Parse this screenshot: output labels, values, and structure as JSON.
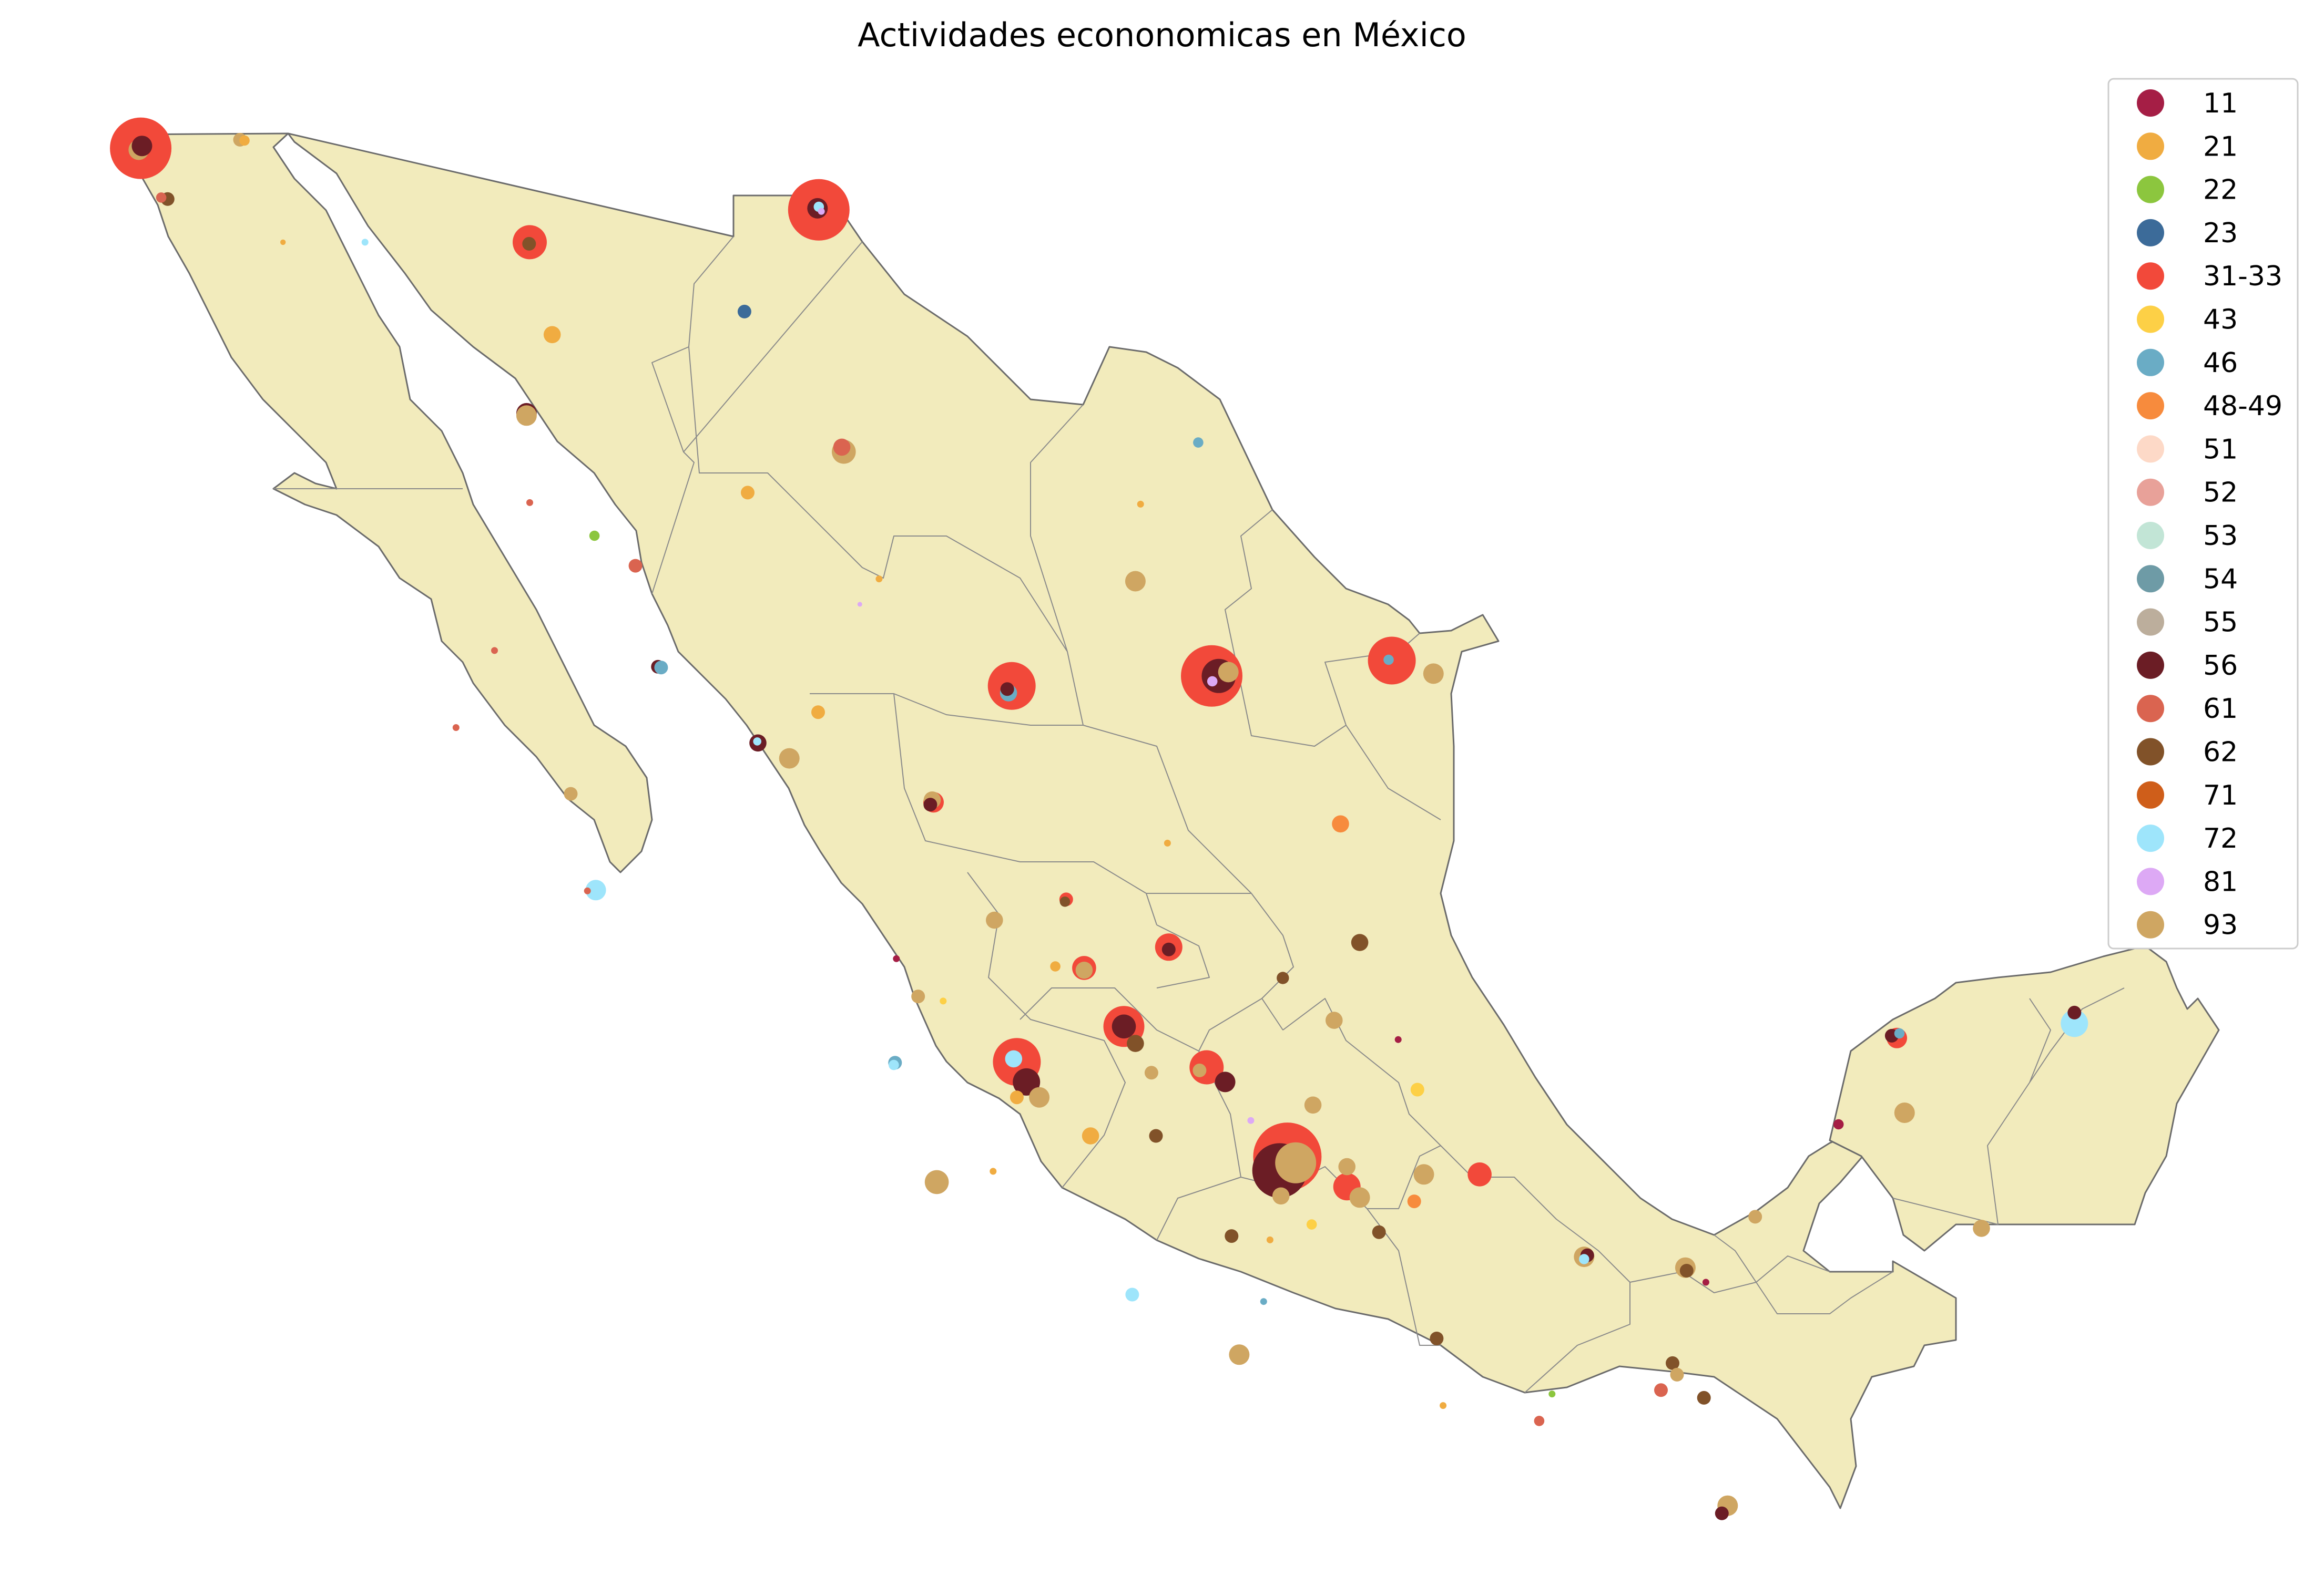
{
  "title": "Actividades econonomicas en México",
  "legend": {
    "entries": [
      {
        "code": "11",
        "label": "11",
        "color": "#a51e45"
      },
      {
        "code": "21",
        "label": "21",
        "color": "#f0ac41"
      },
      {
        "code": "22",
        "label": "22",
        "color": "#8cc63e"
      },
      {
        "code": "23",
        "label": "23",
        "color": "#3c6b99"
      },
      {
        "code": "31-33",
        "label": "31-33",
        "color": "#f2493a"
      },
      {
        "code": "43",
        "label": "43",
        "color": "#fdd046"
      },
      {
        "code": "46",
        "label": "46",
        "color": "#6aacc5"
      },
      {
        "code": "48-49",
        "label": "48-49",
        "color": "#f78b3d"
      },
      {
        "code": "51",
        "label": "51",
        "color": "#fdd9c7"
      },
      {
        "code": "52",
        "label": "52",
        "color": "#e8a199"
      },
      {
        "code": "53",
        "label": "53",
        "color": "#c2e5d6"
      },
      {
        "code": "54",
        "label": "54",
        "color": "#6e9ba6"
      },
      {
        "code": "55",
        "label": "55",
        "color": "#bcae9c"
      },
      {
        "code": "56",
        "label": "56",
        "color": "#6b1d25"
      },
      {
        "code": "61",
        "label": "61",
        "color": "#da6450"
      },
      {
        "code": "62",
        "label": "62",
        "color": "#815229"
      },
      {
        "code": "71",
        "label": "71",
        "color": "#cf5e1a"
      },
      {
        "code": "72",
        "label": "72",
        "color": "#9ee5fb"
      },
      {
        "code": "81",
        "label": "81",
        "color": "#dda9f5"
      },
      {
        "code": "93",
        "label": "93",
        "color": "#cfa662"
      }
    ]
  },
  "map": {
    "land_color": "#f2ebbc",
    "border_color": "#8a8a8a",
    "points": [
      {
        "lon": -117.02,
        "lat": 32.52,
        "code": "31-33",
        "size": 9
      },
      {
        "lon": -117.05,
        "lat": 32.5,
        "code": "93",
        "size": 3
      },
      {
        "lon": -117.0,
        "lat": 32.55,
        "code": "56",
        "size": 3
      },
      {
        "lon": -115.47,
        "lat": 32.63,
        "code": "93",
        "size": 2
      },
      {
        "lon": -115.4,
        "lat": 32.62,
        "code": "21",
        "size": 1.5
      },
      {
        "lon": -116.6,
        "lat": 31.86,
        "code": "62",
        "size": 2
      },
      {
        "lon": -116.7,
        "lat": 31.88,
        "code": "61",
        "size": 1.5
      },
      {
        "lon": -114.8,
        "lat": 31.3,
        "code": "21",
        "size": 0.8
      },
      {
        "lon": -113.52,
        "lat": 31.3,
        "code": "72",
        "size": 1
      },
      {
        "lon": -110.95,
        "lat": 31.3,
        "code": "31-33",
        "size": 5
      },
      {
        "lon": -110.96,
        "lat": 31.28,
        "code": "62",
        "size": 2
      },
      {
        "lon": -106.44,
        "lat": 31.72,
        "code": "31-33",
        "size": 9
      },
      {
        "lon": -106.46,
        "lat": 31.74,
        "code": "56",
        "size": 3
      },
      {
        "lon": -106.44,
        "lat": 31.76,
        "code": "72",
        "size": 1.5
      },
      {
        "lon": -106.4,
        "lat": 31.7,
        "code": "81",
        "size": 1
      },
      {
        "lon": -110.6,
        "lat": 30.1,
        "code": "21",
        "size": 2.5
      },
      {
        "lon": -107.6,
        "lat": 30.4,
        "code": "23",
        "size": 2
      },
      {
        "lon": -111.0,
        "lat": 29.08,
        "code": "56",
        "size": 3
      },
      {
        "lon": -111.0,
        "lat": 29.05,
        "code": "93",
        "size": 3
      },
      {
        "lon": -106.08,
        "lat": 28.64,
        "code": "61",
        "size": 2.5
      },
      {
        "lon": -106.05,
        "lat": 28.58,
        "code": "93",
        "size": 3.5
      },
      {
        "lon": -100.52,
        "lat": 28.7,
        "code": "46",
        "size": 1.5
      },
      {
        "lon": -107.55,
        "lat": 28.05,
        "code": "21",
        "size": 2
      },
      {
        "lon": -110.95,
        "lat": 27.92,
        "code": "61",
        "size": 1
      },
      {
        "lon": -101.42,
        "lat": 27.9,
        "code": "21",
        "size": 1
      },
      {
        "lon": -109.94,
        "lat": 27.49,
        "code": "22",
        "size": 1.5
      },
      {
        "lon": -109.3,
        "lat": 27.1,
        "code": "61",
        "size": 2
      },
      {
        "lon": -101.5,
        "lat": 26.9,
        "code": "93",
        "size": 3
      },
      {
        "lon": -103.43,
        "lat": 25.54,
        "code": "31-33",
        "size": 7
      },
      {
        "lon": -103.48,
        "lat": 25.45,
        "code": "46",
        "size": 2.5
      },
      {
        "lon": -103.5,
        "lat": 25.5,
        "code": "56",
        "size": 2
      },
      {
        "lon": -100.31,
        "lat": 25.67,
        "code": "31-33",
        "size": 9
      },
      {
        "lon": -100.2,
        "lat": 25.67,
        "code": "56",
        "size": 5
      },
      {
        "lon": -100.05,
        "lat": 25.72,
        "code": "93",
        "size": 3
      },
      {
        "lon": -100.3,
        "lat": 25.6,
        "code": "81",
        "size": 1.5
      },
      {
        "lon": -97.5,
        "lat": 25.87,
        "code": "31-33",
        "size": 7
      },
      {
        "lon": -97.55,
        "lat": 25.88,
        "code": "46",
        "size": 1.5
      },
      {
        "lon": -96.85,
        "lat": 25.7,
        "code": "93",
        "size": 3
      },
      {
        "lon": -105.8,
        "lat": 26.6,
        "code": "81",
        "size": 0.7
      },
      {
        "lon": -105.5,
        "lat": 26.93,
        "code": "21",
        "size": 1
      },
      {
        "lon": -108.95,
        "lat": 25.79,
        "code": "56",
        "size": 2
      },
      {
        "lon": -108.9,
        "lat": 25.78,
        "code": "46",
        "size": 2
      },
      {
        "lon": -104.65,
        "lat": 24.03,
        "code": "31-33",
        "size": 3
      },
      {
        "lon": -104.7,
        "lat": 24.0,
        "code": "56",
        "size": 2
      },
      {
        "lon": -104.67,
        "lat": 24.06,
        "code": "93",
        "size": 2.5
      },
      {
        "lon": -106.45,
        "lat": 25.2,
        "code": "21",
        "size": 2
      },
      {
        "lon": -107.39,
        "lat": 24.8,
        "code": "56",
        "size": 2.5
      },
      {
        "lon": -107.4,
        "lat": 24.82,
        "code": "72",
        "size": 1.2
      },
      {
        "lon": -106.9,
        "lat": 24.6,
        "code": "93",
        "size": 3
      },
      {
        "lon": -98.3,
        "lat": 23.75,
        "code": "48-49",
        "size": 2.5
      },
      {
        "lon": -101.0,
        "lat": 23.5,
        "code": "21",
        "size": 1
      },
      {
        "lon": -102.58,
        "lat": 22.77,
        "code": "31-33",
        "size": 2
      },
      {
        "lon": -102.6,
        "lat": 22.74,
        "code": "62",
        "size": 1.5
      },
      {
        "lon": -103.7,
        "lat": 22.5,
        "code": "93",
        "size": 2.5
      },
      {
        "lon": -102.3,
        "lat": 21.88,
        "code": "31-33",
        "size": 3.5
      },
      {
        "lon": -102.3,
        "lat": 21.85,
        "code": "93",
        "size": 2.5
      },
      {
        "lon": -100.98,
        "lat": 22.15,
        "code": "31-33",
        "size": 4
      },
      {
        "lon": -100.98,
        "lat": 22.12,
        "code": "56",
        "size": 2
      },
      {
        "lon": -102.75,
        "lat": 21.9,
        "code": "21",
        "size": 1.5
      },
      {
        "lon": -98.0,
        "lat": 22.21,
        "code": "62",
        "size": 2.5
      },
      {
        "lon": -99.2,
        "lat": 21.75,
        "code": "62",
        "size": 1.8
      },
      {
        "lon": -98.4,
        "lat": 21.2,
        "code": "93",
        "size": 2.5
      },
      {
        "lon": -97.4,
        "lat": 20.95,
        "code": "11",
        "size": 1
      },
      {
        "lon": -105.23,
        "lat": 22.0,
        "code": "11",
        "size": 1
      },
      {
        "lon": -104.89,
        "lat": 21.51,
        "code": "93",
        "size": 2
      },
      {
        "lon": -104.5,
        "lat": 21.45,
        "code": "43",
        "size": 1
      },
      {
        "lon": -103.35,
        "lat": 20.66,
        "code": "31-33",
        "size": 7
      },
      {
        "lon": -103.2,
        "lat": 20.4,
        "code": "56",
        "size": 4
      },
      {
        "lon": -103.4,
        "lat": 20.7,
        "code": "72",
        "size": 2.5
      },
      {
        "lon": -103.0,
        "lat": 20.2,
        "code": "93",
        "size": 3
      },
      {
        "lon": -103.35,
        "lat": 20.2,
        "code": "21",
        "size": 2
      },
      {
        "lon": -105.25,
        "lat": 20.65,
        "code": "46",
        "size": 2
      },
      {
        "lon": -105.27,
        "lat": 20.62,
        "code": "72",
        "size": 1.5
      },
      {
        "lon": -101.68,
        "lat": 21.12,
        "code": "31-33",
        "size": 6
      },
      {
        "lon": -101.68,
        "lat": 21.12,
        "code": "56",
        "size": 3.5
      },
      {
        "lon": -101.5,
        "lat": 20.9,
        "code": "62",
        "size": 2.5
      },
      {
        "lon": -101.25,
        "lat": 20.52,
        "code": "93",
        "size": 2
      },
      {
        "lon": -100.39,
        "lat": 20.59,
        "code": "31-33",
        "size": 5
      },
      {
        "lon": -100.1,
        "lat": 20.4,
        "code": "56",
        "size": 3
      },
      {
        "lon": -100.5,
        "lat": 20.55,
        "code": "93",
        "size": 2
      },
      {
        "lon": -101.18,
        "lat": 19.7,
        "code": "62",
        "size": 2
      },
      {
        "lon": -102.2,
        "lat": 19.7,
        "code": "21",
        "size": 2.5
      },
      {
        "lon": -104.6,
        "lat": 19.1,
        "code": "93",
        "size": 3.5
      },
      {
        "lon": -103.72,
        "lat": 19.24,
        "code": "21",
        "size": 1
      },
      {
        "lon": -99.13,
        "lat": 19.43,
        "code": "31-33",
        "size": 10
      },
      {
        "lon": -99.25,
        "lat": 19.25,
        "code": "56",
        "size": 8
      },
      {
        "lon": -99.0,
        "lat": 19.35,
        "code": "93",
        "size": 6
      },
      {
        "lon": -98.2,
        "lat": 19.04,
        "code": "31-33",
        "size": 4
      },
      {
        "lon": -98.0,
        "lat": 18.9,
        "code": "93",
        "size": 3
      },
      {
        "lon": -98.2,
        "lat": 19.3,
        "code": "93",
        "size": 2.5
      },
      {
        "lon": -97.0,
        "lat": 19.2,
        "code": "93",
        "size": 3
      },
      {
        "lon": -96.13,
        "lat": 19.2,
        "code": "31-33",
        "size": 3.5
      },
      {
        "lon": -97.1,
        "lat": 20.3,
        "code": "43",
        "size": 2
      },
      {
        "lon": -98.73,
        "lat": 20.1,
        "code": "93",
        "size": 2.5
      },
      {
        "lon": -99.7,
        "lat": 19.9,
        "code": "81",
        "size": 1
      },
      {
        "lon": -99.23,
        "lat": 18.92,
        "code": "93",
        "size": 2.5
      },
      {
        "lon": -98.75,
        "lat": 18.55,
        "code": "43",
        "size": 1.5
      },
      {
        "lon": -97.7,
        "lat": 18.45,
        "code": "62",
        "size": 2
      },
      {
        "lon": -97.15,
        "lat": 18.85,
        "code": "48-49",
        "size": 2
      },
      {
        "lon": -96.8,
        "lat": 17.07,
        "code": "62",
        "size": 2
      },
      {
        "lon": -99.5,
        "lat": 17.55,
        "code": "46",
        "size": 1
      },
      {
        "lon": -99.88,
        "lat": 16.86,
        "code": "93",
        "size": 3
      },
      {
        "lon": -100.0,
        "lat": 18.4,
        "code": "62",
        "size": 2
      },
      {
        "lon": -99.4,
        "lat": 18.35,
        "code": "21",
        "size": 1
      },
      {
        "lon": -101.55,
        "lat": 17.64,
        "code": "72",
        "size": 2
      },
      {
        "lon": -96.7,
        "lat": 16.2,
        "code": "21",
        "size": 1
      },
      {
        "lon": -95.2,
        "lat": 16.0,
        "code": "61",
        "size": 1.5
      },
      {
        "lon": -95.0,
        "lat": 16.35,
        "code": "22",
        "size": 1
      },
      {
        "lon": -94.5,
        "lat": 18.13,
        "code": "93",
        "size": 3
      },
      {
        "lon": -94.45,
        "lat": 18.15,
        "code": "56",
        "size": 2
      },
      {
        "lon": -94.5,
        "lat": 18.1,
        "code": "72",
        "size": 1.5
      },
      {
        "lon": -92.92,
        "lat": 17.99,
        "code": "93",
        "size": 3
      },
      {
        "lon": -92.9,
        "lat": 17.95,
        "code": "62",
        "size": 2
      },
      {
        "lon": -92.6,
        "lat": 17.8,
        "code": "11",
        "size": 1
      },
      {
        "lon": -93.12,
        "lat": 16.75,
        "code": "62",
        "size": 2
      },
      {
        "lon": -93.05,
        "lat": 16.6,
        "code": "93",
        "size": 2
      },
      {
        "lon": -93.3,
        "lat": 16.4,
        "code": "61",
        "size": 2
      },
      {
        "lon": -92.63,
        "lat": 16.3,
        "code": "62",
        "size": 2
      },
      {
        "lon": -92.26,
        "lat": 14.9,
        "code": "93",
        "size": 3
      },
      {
        "lon": -92.35,
        "lat": 14.8,
        "code": "56",
        "size": 2
      },
      {
        "lon": -89.62,
        "lat": 20.97,
        "code": "31-33",
        "size": 3
      },
      {
        "lon": -89.7,
        "lat": 21.0,
        "code": "56",
        "size": 2
      },
      {
        "lon": -89.58,
        "lat": 21.03,
        "code": "46",
        "size": 1.5
      },
      {
        "lon": -89.5,
        "lat": 20.0,
        "code": "93",
        "size": 3
      },
      {
        "lon": -90.53,
        "lat": 19.85,
        "code": "11",
        "size": 1.5
      },
      {
        "lon": -86.85,
        "lat": 21.16,
        "code": "72",
        "size": 4
      },
      {
        "lon": -86.85,
        "lat": 21.3,
        "code": "56",
        "size": 2
      },
      {
        "lon": -88.3,
        "lat": 18.5,
        "code": "93",
        "size": 2.5
      },
      {
        "lon": -91.83,
        "lat": 18.65,
        "code": "93",
        "size": 2
      },
      {
        "lon": -110.31,
        "lat": 24.14,
        "code": "93",
        "size": 2
      },
      {
        "lon": -109.92,
        "lat": 22.89,
        "code": "72",
        "size": 3
      },
      {
        "lon": -110.05,
        "lat": 22.88,
        "code": "61",
        "size": 1
      },
      {
        "lon": -112.1,
        "lat": 25.0,
        "code": "61",
        "size": 1
      },
      {
        "lon": -111.5,
        "lat": 26.0,
        "code": "61",
        "size": 1
      }
    ]
  }
}
